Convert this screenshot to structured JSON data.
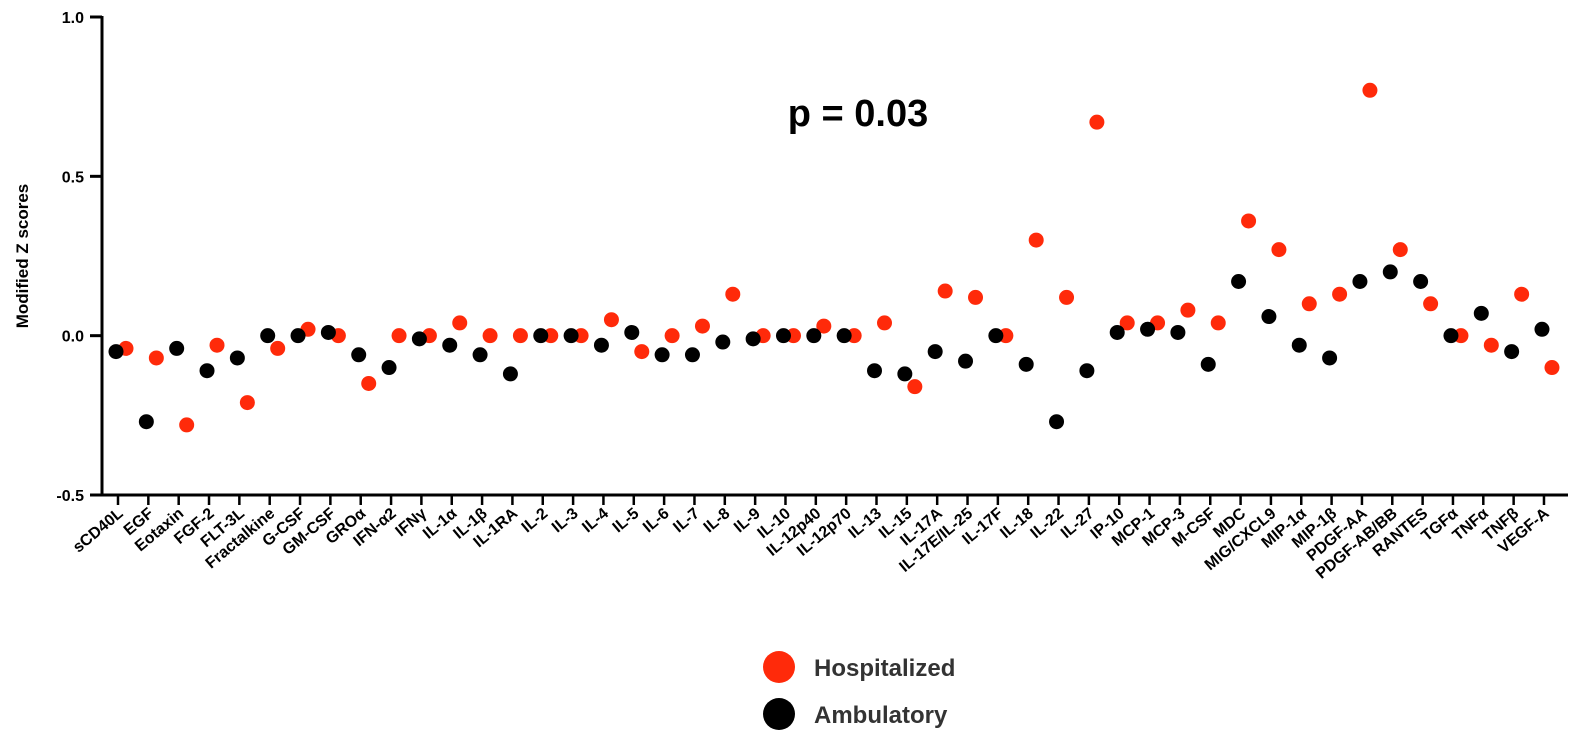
{
  "chart_data": {
    "type": "scatter",
    "ylabel": "Modified Z scores",
    "xlabel": "",
    "ylim": [
      -0.5,
      1.0
    ],
    "yticks": [
      "1.0",
      "0.5",
      "0.0",
      "-0.5"
    ],
    "annotation": "p = 0.03",
    "legend_position": "bottom-center",
    "categories": [
      "sCD40L",
      "EGF",
      "Eotaxin",
      "FGF-2",
      "FLT-3L",
      "Fractalkine",
      "G-CSF",
      "GM-CSF",
      "GROα",
      "IFN-α2",
      "IFNγ",
      "IL-1α",
      "IL-1β",
      "IL-1RA",
      "IL-2",
      "IL-3",
      "IL-4",
      "IL-5",
      "IL-6",
      "IL-7",
      "IL-8",
      "IL-9",
      "IL-10",
      "IL-12p40",
      "IL-12p70",
      "IL-13",
      "IL-15",
      "IL-17A",
      "IL-17E/IL-25",
      "IL-17F",
      "IL-18",
      "IL-22",
      "IL-27",
      "IP-10",
      "MCP-1",
      "MCP-3",
      "M-CSF",
      "MDC",
      "MIG/CXCL9",
      "MIP-1α",
      "MIP-1β",
      "PDGF-AA",
      "PDGF-AB/BB",
      "RANTES",
      "TGFα",
      "TNFα",
      "TNFβ",
      "VEGF-A"
    ],
    "series": [
      {
        "name": "Hospitalized",
        "color": "#ff2a0a",
        "values": [
          -0.04,
          -0.07,
          -0.28,
          -0.03,
          -0.21,
          -0.04,
          0.02,
          0.0,
          -0.15,
          0.0,
          0.0,
          0.04,
          0.0,
          0.0,
          0.0,
          0.0,
          0.05,
          -0.05,
          0.0,
          0.03,
          0.13,
          0.0,
          0.0,
          0.03,
          0.0,
          0.04,
          -0.16,
          0.14,
          0.12,
          0.0,
          0.3,
          0.12,
          0.67,
          0.04,
          0.04,
          0.08,
          0.04,
          0.36,
          0.27,
          0.1,
          0.13,
          0.77,
          0.27,
          0.1,
          0.0,
          -0.03,
          0.13,
          -0.1
        ]
      },
      {
        "name": "Ambulatory",
        "color": "#000000",
        "values": [
          -0.05,
          -0.27,
          -0.04,
          -0.11,
          -0.07,
          0.0,
          0.0,
          0.01,
          -0.06,
          -0.1,
          -0.01,
          -0.03,
          -0.06,
          -0.12,
          0.0,
          0.0,
          -0.03,
          0.01,
          -0.06,
          -0.06,
          -0.02,
          -0.01,
          0.0,
          0.0,
          0.0,
          -0.11,
          -0.12,
          -0.05,
          -0.08,
          0.0,
          -0.09,
          -0.27,
          -0.11,
          0.01,
          0.02,
          0.01,
          -0.09,
          0.17,
          0.06,
          -0.03,
          -0.07,
          0.17,
          0.2,
          0.17,
          0.0,
          0.07,
          -0.05,
          0.02
        ]
      }
    ]
  }
}
